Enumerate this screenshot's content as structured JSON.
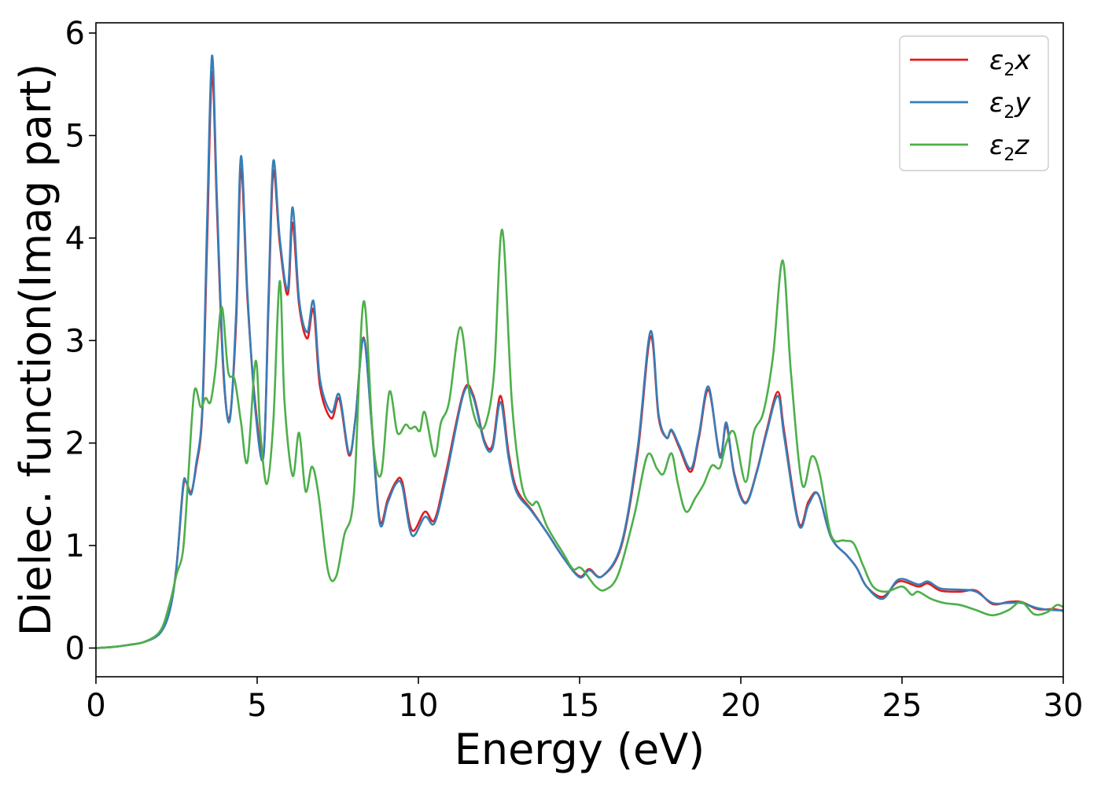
{
  "chart_data": {
    "type": "line",
    "xlabel": "Energy (eV)",
    "ylabel": "Dielec. function(Imag part)",
    "xlim": [
      0,
      30
    ],
    "ylim": [
      -0.28,
      6.1
    ],
    "xticks": [
      0,
      5,
      10,
      15,
      20,
      25,
      30
    ],
    "yticks": [
      0,
      1,
      2,
      3,
      4,
      5,
      6
    ],
    "xtick_labels": [
      "0",
      "5",
      "10",
      "15",
      "20",
      "25",
      "30"
    ],
    "ytick_labels": [
      "0",
      "1",
      "2",
      "3",
      "4",
      "5",
      "6"
    ],
    "grid": false,
    "legend_position": "top-right",
    "series": [
      {
        "name": "ε2x",
        "legend_main": "ε",
        "legend_sub": "2",
        "legend_tail": "x",
        "color": "#e41a1c",
        "points": [
          [
            0,
            0
          ],
          [
            0.5,
            0.01
          ],
          [
            1.0,
            0.03
          ],
          [
            1.5,
            0.06
          ],
          [
            2.0,
            0.15
          ],
          [
            2.3,
            0.38
          ],
          [
            2.5,
            0.8
          ],
          [
            2.7,
            1.55
          ],
          [
            2.8,
            1.62
          ],
          [
            2.95,
            1.52
          ],
          [
            3.1,
            1.75
          ],
          [
            3.3,
            2.3
          ],
          [
            3.45,
            4.0
          ],
          [
            3.6,
            5.62
          ],
          [
            3.75,
            4.3
          ],
          [
            3.95,
            2.7
          ],
          [
            4.15,
            2.25
          ],
          [
            4.35,
            3.2
          ],
          [
            4.5,
            4.68
          ],
          [
            4.7,
            3.4
          ],
          [
            4.95,
            2.35
          ],
          [
            5.2,
            1.9
          ],
          [
            5.35,
            3.3
          ],
          [
            5.5,
            4.65
          ],
          [
            5.7,
            3.95
          ],
          [
            5.95,
            3.45
          ],
          [
            6.1,
            4.15
          ],
          [
            6.3,
            3.35
          ],
          [
            6.55,
            3.02
          ],
          [
            6.75,
            3.3
          ],
          [
            6.95,
            2.55
          ],
          [
            7.3,
            2.24
          ],
          [
            7.55,
            2.43
          ],
          [
            7.85,
            1.88
          ],
          [
            8.05,
            2.25
          ],
          [
            8.3,
            3.03
          ],
          [
            8.55,
            2.2
          ],
          [
            8.8,
            1.25
          ],
          [
            9.05,
            1.45
          ],
          [
            9.3,
            1.62
          ],
          [
            9.5,
            1.62
          ],
          [
            9.8,
            1.15
          ],
          [
            10.2,
            1.33
          ],
          [
            10.5,
            1.25
          ],
          [
            10.85,
            1.7
          ],
          [
            11.4,
            2.5
          ],
          [
            11.7,
            2.47
          ],
          [
            12.05,
            2.02
          ],
          [
            12.3,
            1.98
          ],
          [
            12.55,
            2.46
          ],
          [
            12.8,
            1.9
          ],
          [
            13.05,
            1.55
          ],
          [
            13.5,
            1.35
          ],
          [
            14.0,
            1.12
          ],
          [
            14.5,
            0.88
          ],
          [
            15.0,
            0.7
          ],
          [
            15.3,
            0.77
          ],
          [
            15.7,
            0.7
          ],
          [
            16.3,
            1.0
          ],
          [
            16.8,
            1.9
          ],
          [
            17.2,
            3.04
          ],
          [
            17.45,
            2.25
          ],
          [
            17.7,
            2.05
          ],
          [
            17.85,
            2.12
          ],
          [
            18.1,
            1.95
          ],
          [
            18.45,
            1.72
          ],
          [
            18.7,
            2.05
          ],
          [
            19.0,
            2.52
          ],
          [
            19.35,
            1.88
          ],
          [
            19.55,
            2.17
          ],
          [
            19.8,
            1.7
          ],
          [
            20.15,
            1.42
          ],
          [
            20.5,
            1.73
          ],
          [
            20.8,
            2.12
          ],
          [
            21.15,
            2.5
          ],
          [
            21.35,
            2.1
          ],
          [
            21.8,
            1.22
          ],
          [
            22.1,
            1.43
          ],
          [
            22.4,
            1.5
          ],
          [
            22.8,
            1.08
          ],
          [
            23.3,
            0.9
          ],
          [
            23.6,
            0.78
          ],
          [
            23.9,
            0.6
          ],
          [
            24.4,
            0.5
          ],
          [
            24.9,
            0.65
          ],
          [
            25.5,
            0.6
          ],
          [
            25.8,
            0.63
          ],
          [
            26.2,
            0.56
          ],
          [
            26.8,
            0.55
          ],
          [
            27.3,
            0.56
          ],
          [
            27.8,
            0.43
          ],
          [
            28.3,
            0.45
          ],
          [
            28.7,
            0.45
          ],
          [
            29.2,
            0.38
          ],
          [
            29.7,
            0.38
          ],
          [
            30,
            0.36
          ]
        ]
      },
      {
        "name": "ε2y",
        "legend_main": "ε",
        "legend_sub": "2",
        "legend_tail": "y",
        "color": "#377eb8",
        "points": [
          [
            0,
            0
          ],
          [
            0.5,
            0.01
          ],
          [
            1.0,
            0.03
          ],
          [
            1.5,
            0.06
          ],
          [
            2.0,
            0.15
          ],
          [
            2.3,
            0.38
          ],
          [
            2.5,
            0.8
          ],
          [
            2.7,
            1.58
          ],
          [
            2.8,
            1.62
          ],
          [
            2.95,
            1.5
          ],
          [
            3.1,
            1.78
          ],
          [
            3.3,
            2.35
          ],
          [
            3.45,
            4.2
          ],
          [
            3.6,
            5.78
          ],
          [
            3.75,
            4.4
          ],
          [
            3.95,
            2.75
          ],
          [
            4.15,
            2.22
          ],
          [
            4.35,
            3.3
          ],
          [
            4.5,
            4.8
          ],
          [
            4.7,
            3.45
          ],
          [
            4.95,
            2.3
          ],
          [
            5.2,
            1.88
          ],
          [
            5.35,
            3.4
          ],
          [
            5.5,
            4.75
          ],
          [
            5.7,
            4.0
          ],
          [
            5.95,
            3.5
          ],
          [
            6.1,
            4.3
          ],
          [
            6.3,
            3.4
          ],
          [
            6.55,
            3.08
          ],
          [
            6.75,
            3.38
          ],
          [
            6.95,
            2.62
          ],
          [
            7.3,
            2.3
          ],
          [
            7.55,
            2.47
          ],
          [
            7.85,
            1.9
          ],
          [
            8.05,
            2.25
          ],
          [
            8.3,
            3.02
          ],
          [
            8.55,
            2.18
          ],
          [
            8.8,
            1.22
          ],
          [
            9.05,
            1.42
          ],
          [
            9.3,
            1.6
          ],
          [
            9.5,
            1.58
          ],
          [
            9.8,
            1.1
          ],
          [
            10.2,
            1.28
          ],
          [
            10.5,
            1.22
          ],
          [
            10.85,
            1.65
          ],
          [
            11.4,
            2.48
          ],
          [
            11.7,
            2.45
          ],
          [
            12.05,
            2.0
          ],
          [
            12.3,
            1.95
          ],
          [
            12.55,
            2.4
          ],
          [
            12.8,
            1.85
          ],
          [
            13.05,
            1.52
          ],
          [
            13.5,
            1.34
          ],
          [
            14.0,
            1.12
          ],
          [
            14.5,
            0.88
          ],
          [
            15.0,
            0.69
          ],
          [
            15.3,
            0.76
          ],
          [
            15.7,
            0.7
          ],
          [
            16.3,
            1.02
          ],
          [
            16.8,
            1.95
          ],
          [
            17.2,
            3.09
          ],
          [
            17.45,
            2.28
          ],
          [
            17.7,
            2.05
          ],
          [
            17.85,
            2.13
          ],
          [
            18.1,
            1.97
          ],
          [
            18.45,
            1.75
          ],
          [
            18.7,
            2.08
          ],
          [
            19.0,
            2.55
          ],
          [
            19.35,
            1.86
          ],
          [
            19.55,
            2.2
          ],
          [
            19.8,
            1.68
          ],
          [
            20.15,
            1.41
          ],
          [
            20.5,
            1.72
          ],
          [
            20.8,
            2.1
          ],
          [
            21.15,
            2.46
          ],
          [
            21.35,
            2.05
          ],
          [
            21.8,
            1.2
          ],
          [
            22.1,
            1.4
          ],
          [
            22.4,
            1.5
          ],
          [
            22.8,
            1.08
          ],
          [
            23.3,
            0.9
          ],
          [
            23.6,
            0.78
          ],
          [
            23.9,
            0.6
          ],
          [
            24.4,
            0.48
          ],
          [
            24.9,
            0.67
          ],
          [
            25.5,
            0.62
          ],
          [
            25.8,
            0.65
          ],
          [
            26.2,
            0.58
          ],
          [
            26.8,
            0.57
          ],
          [
            27.3,
            0.55
          ],
          [
            27.8,
            0.44
          ],
          [
            28.3,
            0.44
          ],
          [
            28.7,
            0.44
          ],
          [
            29.2,
            0.39
          ],
          [
            29.7,
            0.37
          ],
          [
            30,
            0.37
          ]
        ]
      },
      {
        "name": "ε2z",
        "legend_main": "ε",
        "legend_sub": "2",
        "legend_tail": "z",
        "color": "#4daf4a",
        "points": [
          [
            0,
            0
          ],
          [
            0.5,
            0.01
          ],
          [
            1.0,
            0.03
          ],
          [
            1.5,
            0.06
          ],
          [
            2.0,
            0.17
          ],
          [
            2.3,
            0.45
          ],
          [
            2.5,
            0.72
          ],
          [
            2.7,
            0.95
          ],
          [
            2.85,
            1.6
          ],
          [
            3.05,
            2.5
          ],
          [
            3.25,
            2.35
          ],
          [
            3.4,
            2.44
          ],
          [
            3.55,
            2.4
          ],
          [
            3.7,
            2.7
          ],
          [
            3.9,
            3.33
          ],
          [
            4.1,
            2.7
          ],
          [
            4.3,
            2.62
          ],
          [
            4.5,
            2.2
          ],
          [
            4.7,
            1.82
          ],
          [
            4.95,
            2.8
          ],
          [
            5.1,
            2.1
          ],
          [
            5.3,
            1.6
          ],
          [
            5.5,
            2.2
          ],
          [
            5.7,
            3.58
          ],
          [
            5.85,
            2.4
          ],
          [
            6.1,
            1.68
          ],
          [
            6.3,
            2.1
          ],
          [
            6.5,
            1.53
          ],
          [
            6.7,
            1.77
          ],
          [
            6.9,
            1.5
          ],
          [
            7.2,
            0.75
          ],
          [
            7.45,
            0.7
          ],
          [
            7.7,
            1.1
          ],
          [
            8.0,
            1.5
          ],
          [
            8.3,
            3.38
          ],
          [
            8.6,
            2.0
          ],
          [
            8.85,
            1.7
          ],
          [
            9.1,
            2.5
          ],
          [
            9.35,
            2.1
          ],
          [
            9.6,
            2.18
          ],
          [
            9.75,
            2.14
          ],
          [
            9.9,
            2.16
          ],
          [
            10.05,
            2.12
          ],
          [
            10.2,
            2.3
          ],
          [
            10.5,
            1.87
          ],
          [
            10.7,
            2.2
          ],
          [
            10.95,
            2.4
          ],
          [
            11.3,
            3.13
          ],
          [
            11.6,
            2.45
          ],
          [
            11.85,
            2.17
          ],
          [
            12.1,
            2.2
          ],
          [
            12.35,
            2.7
          ],
          [
            12.6,
            4.08
          ],
          [
            12.9,
            2.4
          ],
          [
            13.2,
            1.6
          ],
          [
            13.5,
            1.4
          ],
          [
            13.7,
            1.42
          ],
          [
            14.0,
            1.18
          ],
          [
            14.5,
            0.92
          ],
          [
            14.8,
            0.77
          ],
          [
            15.05,
            0.78
          ],
          [
            15.5,
            0.6
          ],
          [
            15.8,
            0.57
          ],
          [
            16.2,
            0.72
          ],
          [
            16.7,
            1.3
          ],
          [
            17.1,
            1.88
          ],
          [
            17.4,
            1.75
          ],
          [
            17.6,
            1.7
          ],
          [
            17.85,
            1.9
          ],
          [
            18.05,
            1.6
          ],
          [
            18.3,
            1.33
          ],
          [
            18.6,
            1.47
          ],
          [
            18.85,
            1.6
          ],
          [
            19.1,
            1.78
          ],
          [
            19.35,
            1.76
          ],
          [
            19.55,
            2.0
          ],
          [
            19.8,
            2.1
          ],
          [
            20.15,
            1.62
          ],
          [
            20.4,
            2.1
          ],
          [
            20.7,
            2.3
          ],
          [
            21.0,
            2.85
          ],
          [
            21.3,
            3.78
          ],
          [
            21.55,
            2.7
          ],
          [
            21.9,
            1.6
          ],
          [
            22.2,
            1.87
          ],
          [
            22.45,
            1.7
          ],
          [
            22.8,
            1.1
          ],
          [
            23.2,
            1.05
          ],
          [
            23.5,
            1.02
          ],
          [
            23.8,
            0.8
          ],
          [
            24.1,
            0.6
          ],
          [
            24.5,
            0.55
          ],
          [
            25.0,
            0.6
          ],
          [
            25.3,
            0.52
          ],
          [
            25.5,
            0.55
          ],
          [
            25.9,
            0.48
          ],
          [
            26.3,
            0.44
          ],
          [
            26.8,
            0.42
          ],
          [
            27.3,
            0.37
          ],
          [
            27.8,
            0.32
          ],
          [
            28.3,
            0.37
          ],
          [
            28.7,
            0.45
          ],
          [
            29.1,
            0.33
          ],
          [
            29.5,
            0.35
          ],
          [
            29.8,
            0.42
          ],
          [
            30,
            0.4
          ]
        ]
      }
    ]
  }
}
